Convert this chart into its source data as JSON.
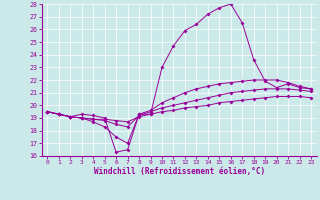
{
  "title": "",
  "xlabel": "Windchill (Refroidissement éolien,°C)",
  "ylabel": "",
  "xlim": [
    -0.5,
    23.5
  ],
  "ylim": [
    16,
    28
  ],
  "yticks": [
    16,
    17,
    18,
    19,
    20,
    21,
    22,
    23,
    24,
    25,
    26,
    27,
    28
  ],
  "xticks": [
    0,
    1,
    2,
    3,
    4,
    5,
    6,
    7,
    8,
    9,
    10,
    11,
    12,
    13,
    14,
    15,
    16,
    17,
    18,
    19,
    20,
    21,
    22,
    23
  ],
  "bg_color": "#cce9e9",
  "line_color": "#990099",
  "grid_color": "#ffffff",
  "line1_x": [
    0,
    1,
    2,
    3,
    4,
    5,
    6,
    7,
    8,
    9,
    10,
    11,
    12,
    13,
    14,
    15,
    16,
    17,
    18,
    19,
    20,
    21,
    22,
    23
  ],
  "line1_y": [
    19.5,
    19.3,
    19.1,
    19.3,
    19.2,
    19.0,
    16.3,
    16.5,
    19.3,
    19.3,
    23.0,
    24.7,
    25.9,
    26.4,
    27.2,
    27.7,
    28.0,
    26.5,
    23.6,
    21.9,
    21.4,
    21.7,
    21.4,
    21.3
  ],
  "line2_x": [
    0,
    1,
    2,
    3,
    4,
    5,
    6,
    7,
    8,
    9,
    10,
    11,
    12,
    13,
    14,
    15,
    16,
    17,
    18,
    19,
    20,
    21,
    22,
    23
  ],
  "line2_y": [
    19.5,
    19.3,
    19.1,
    19.0,
    18.7,
    18.3,
    17.5,
    17.0,
    19.3,
    19.6,
    20.2,
    20.6,
    21.0,
    21.3,
    21.5,
    21.7,
    21.8,
    21.9,
    22.0,
    22.0,
    22.0,
    21.8,
    21.5,
    21.3
  ],
  "line3_x": [
    0,
    1,
    2,
    3,
    4,
    5,
    6,
    7,
    8,
    9,
    10,
    11,
    12,
    13,
    14,
    15,
    16,
    17,
    18,
    19,
    20,
    21,
    22,
    23
  ],
  "line3_y": [
    19.5,
    19.3,
    19.1,
    19.0,
    18.9,
    18.8,
    18.5,
    18.3,
    19.2,
    19.5,
    19.8,
    20.0,
    20.2,
    20.4,
    20.6,
    20.8,
    21.0,
    21.1,
    21.2,
    21.3,
    21.3,
    21.3,
    21.2,
    21.1
  ],
  "line4_x": [
    0,
    1,
    2,
    3,
    4,
    5,
    6,
    7,
    8,
    9,
    10,
    11,
    12,
    13,
    14,
    15,
    16,
    17,
    18,
    19,
    20,
    21,
    22,
    23
  ],
  "line4_y": [
    19.5,
    19.3,
    19.1,
    19.0,
    18.9,
    18.9,
    18.8,
    18.7,
    19.1,
    19.3,
    19.5,
    19.6,
    19.8,
    19.9,
    20.0,
    20.2,
    20.3,
    20.4,
    20.5,
    20.6,
    20.7,
    20.7,
    20.7,
    20.6
  ]
}
